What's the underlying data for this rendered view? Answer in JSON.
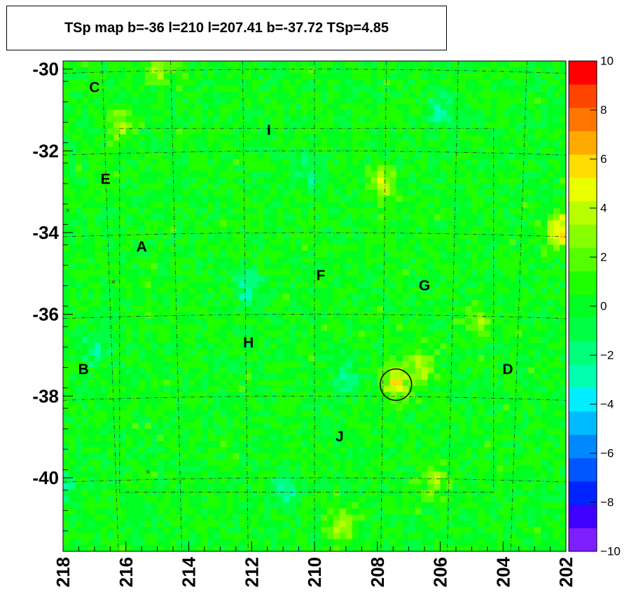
{
  "chart_data": {
    "type": "heatmap",
    "title": "TSp map b=-36 l=210 l=207.41 b=-37.72 TSp=4.85",
    "xlim": [
      218,
      202
    ],
    "ylim": [
      -41.8,
      -29.8
    ],
    "x_ticks": [
      218,
      216,
      214,
      212,
      210,
      208,
      206,
      204,
      202
    ],
    "y_ticks": [
      -30,
      -32,
      -34,
      -36,
      -38,
      -40
    ],
    "z_range": [
      -10,
      10
    ],
    "z_ticks": [
      10,
      8,
      6,
      4,
      2,
      0,
      -2,
      -4,
      -6,
      -8,
      -10
    ],
    "palette": [
      "#7f1fff",
      "#3f00ff",
      "#0024ff",
      "#0056ff",
      "#0088ff",
      "#00bbff",
      "#00eeff",
      "#00ffb0",
      "#00ff7a",
      "#00ff44",
      "#00ff20",
      "#1eff00",
      "#53ff00",
      "#86ff00",
      "#b9ff00",
      "#eaff00",
      "#ffdd00",
      "#ffaa00",
      "#ff7700",
      "#ff4400",
      "#ff0000"
    ],
    "grid": "dashed",
    "regions": [
      {
        "label": "C",
        "l": 217.0,
        "b": -30.45
      },
      {
        "label": "I",
        "l": 211.45,
        "b": -31.5
      },
      {
        "label": "E",
        "l": 216.65,
        "b": -32.7
      },
      {
        "label": "A",
        "l": 215.5,
        "b": -34.35
      },
      {
        "label": "F",
        "l": 209.8,
        "b": -35.05
      },
      {
        "label": "G",
        "l": 206.5,
        "b": -35.3
      },
      {
        "label": "H",
        "l": 212.1,
        "b": -36.7
      },
      {
        "label": "B",
        "l": 217.35,
        "b": -37.35
      },
      {
        "label": "D",
        "l": 203.85,
        "b": -37.35
      },
      {
        "label": "J",
        "l": 209.2,
        "b": -39.0
      }
    ],
    "source": {
      "l": 207.41,
      "b": -37.72,
      "radius_deg": 0.5
    },
    "hotspots": [
      {
        "l": 207.4,
        "b": -37.7,
        "z": 4.85
      },
      {
        "l": 207.8,
        "b": -32.8,
        "z": 3.5
      },
      {
        "l": 202.2,
        "b": -33.95,
        "z": 5.5
      },
      {
        "l": 206.6,
        "b": -37.3,
        "z": 3.2
      },
      {
        "l": 214.9,
        "b": -29.9,
        "z": 3.0
      },
      {
        "l": 216.2,
        "b": -31.4,
        "z": 3.0
      },
      {
        "l": 209.2,
        "b": -41.2,
        "z": 3.2
      },
      {
        "l": 206.2,
        "b": -40.0,
        "z": 2.8
      },
      {
        "l": 204.8,
        "b": -36.2,
        "z": 2.6
      }
    ],
    "coldspots": [
      {
        "l": 212.1,
        "b": -35.3,
        "z": -3.0
      },
      {
        "l": 206.0,
        "b": -31.0,
        "z": -2.6
      },
      {
        "l": 211.0,
        "b": -40.4,
        "z": -2.5
      },
      {
        "l": 217.0,
        "b": -36.8,
        "z": -2.4
      },
      {
        "l": 209.0,
        "b": -37.6,
        "z": -2.4
      },
      {
        "l": 210.2,
        "b": -32.5,
        "z": -2.2
      },
      {
        "l": 217.9,
        "b": -40.2,
        "z": -2.0
      }
    ]
  }
}
